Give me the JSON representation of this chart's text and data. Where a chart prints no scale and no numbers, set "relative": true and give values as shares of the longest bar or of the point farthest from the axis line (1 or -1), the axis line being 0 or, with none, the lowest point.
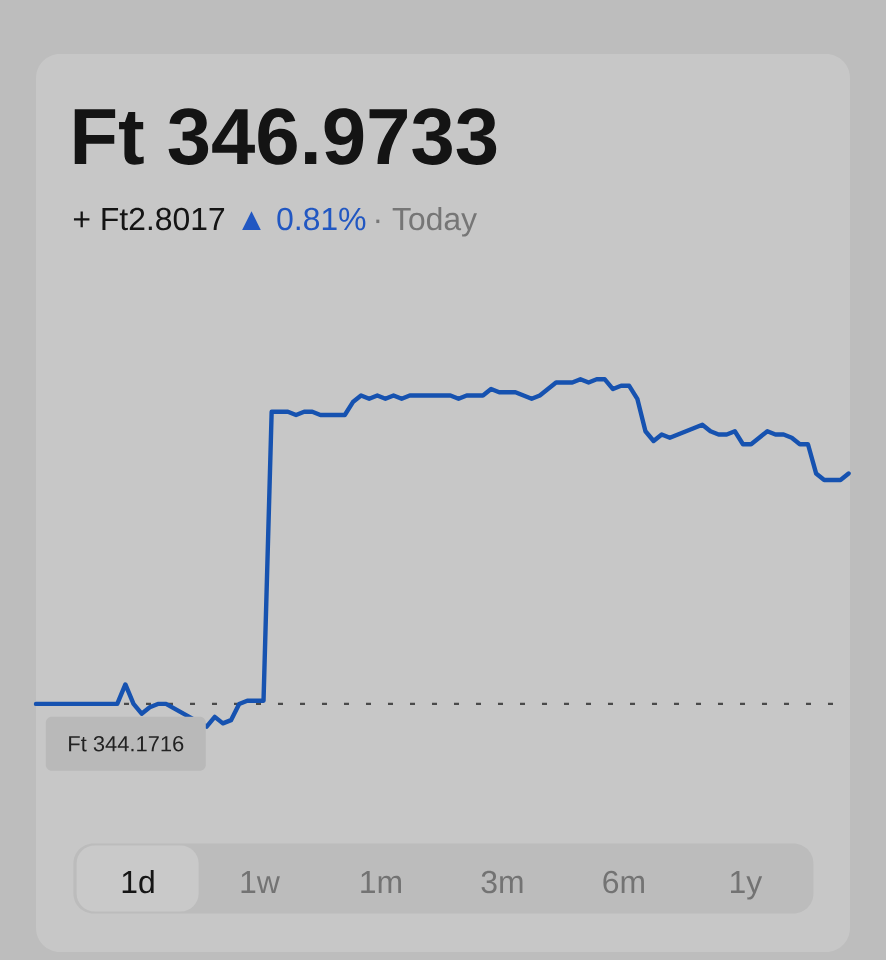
{
  "chart_data": {
    "type": "line",
    "title": "Ft 346.9733",
    "subtitle": "+ Ft2.8017",
    "annotations": [
      "▲ 0.81%",
      "· Today",
      "1d",
      "1w",
      "1m",
      "3m",
      "6m",
      "1y"
    ],
    "categories": [
      null,
      null,
      null,
      null,
      null,
      null,
      null,
      null,
      null,
      null,
      null,
      null,
      null,
      null,
      null,
      null,
      null,
      null,
      null,
      null,
      null,
      null,
      null,
      null,
      null,
      null,
      null,
      null,
      null,
      null,
      null,
      null,
      null,
      null,
      null,
      null,
      null,
      null,
      null,
      null,
      null,
      null,
      null,
      null,
      null,
      null,
      null,
      null,
      null,
      null,
      null,
      null,
      null,
      null,
      null,
      null,
      null,
      null,
      null,
      null,
      null,
      null,
      null,
      null,
      null,
      null,
      null,
      null,
      null,
      null,
      null,
      null,
      null,
      null,
      null,
      null,
      null,
      null,
      null,
      null,
      null,
      null,
      null,
      null,
      null,
      null,
      null,
      null,
      null,
      null,
      null,
      null,
      null,
      null,
      null,
      null,
      null,
      null,
      null,
      null,
      null
    ],
    "values": [
      0,
      0,
      0,
      0,
      0,
      0,
      0,
      0,
      0,
      0,
      0,
      0.06,
      0,
      -0.03,
      -0.01,
      0.0,
      0.0,
      null,
      null,
      null,
      null,
      -0.07,
      -0.04,
      -0.06,
      -0.05,
      0,
      0.01,
      0.01,
      0.01,
      0.9,
      0.9,
      0.9,
      0.89,
      0.9,
      0.9,
      0.89,
      0.89,
      0.89,
      0.89,
      0.93,
      0.95,
      0.94,
      0.95,
      0.94,
      0.95,
      0.94,
      0.95,
      0.95,
      0.95,
      0.95,
      0.95,
      0.95,
      0.94,
      0.95,
      0.95,
      0.95,
      0.97,
      0.96,
      0.96,
      0.96,
      0.95,
      0.94,
      0.95,
      0.97,
      0.99,
      0.99,
      0.99,
      1.0,
      0.99,
      1.0,
      1.0,
      0.97,
      0.98,
      0.98,
      0.94,
      0.84,
      0.81,
      0.83,
      0.82,
      0.83,
      0.84,
      0.85,
      0.86,
      0.84,
      0.83,
      0.83,
      0.84,
      0.8,
      0.8,
      0.82,
      0.84,
      0.83,
      0.83,
      0.82,
      0.8,
      0.8,
      0.71,
      0.69,
      0.69,
      0.69,
      0.71
    ],
    "color": "#1652b0",
    "relative": true,
    "ref_lines": [
      {
        "axis": "y",
        "value": 0,
        "label": "Ft 344.1716",
        "line_style": "dotted",
        "color": "#4a4a4a"
      }
    ]
  }
}
